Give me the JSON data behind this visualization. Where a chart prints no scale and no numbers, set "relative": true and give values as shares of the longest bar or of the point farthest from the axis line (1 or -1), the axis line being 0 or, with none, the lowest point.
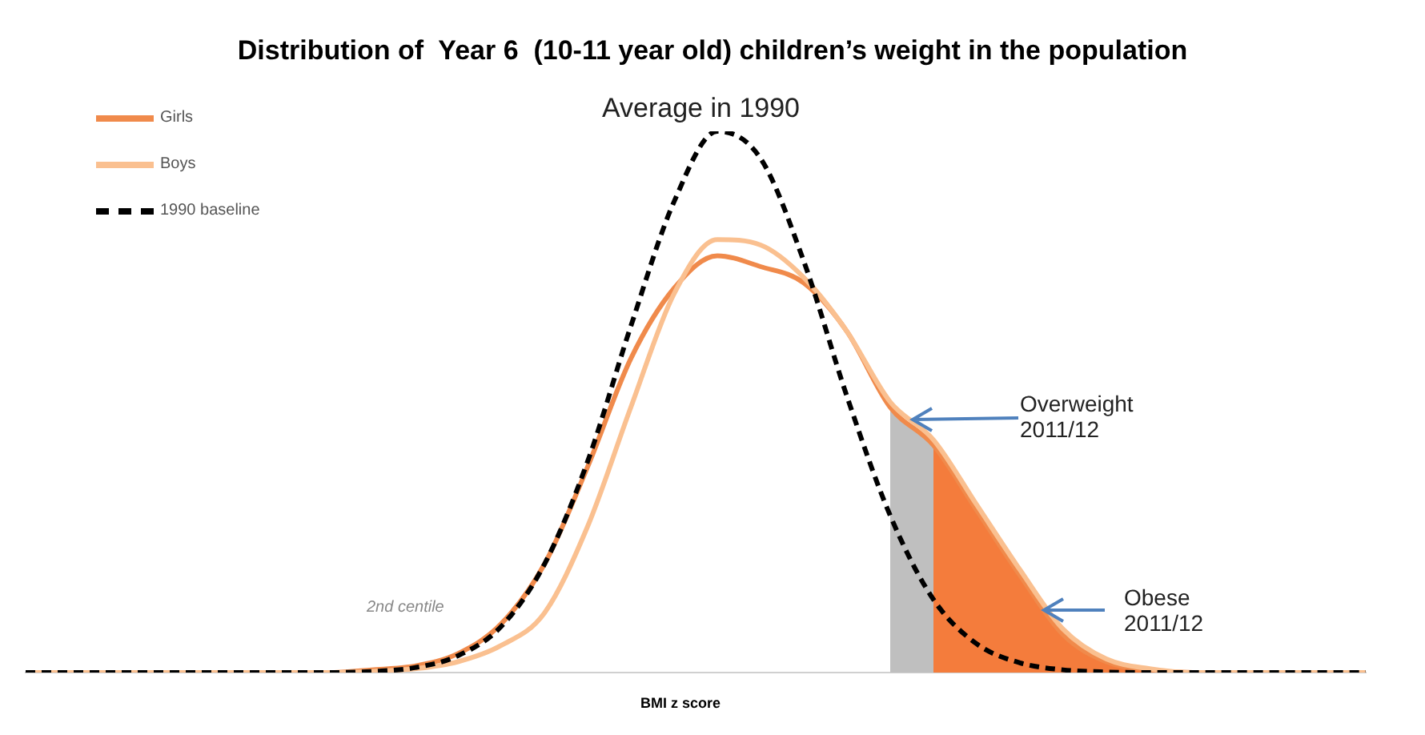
{
  "chart_data": {
    "type": "line",
    "relative": true,
    "title": "Distribution of  Year 6  (10-11 year old) children’s weight in the population",
    "xlabel": "BMI z score",
    "legend": "top left",
    "marker": "none",
    "categories": [
      null,
      null,
      null,
      null,
      null,
      null,
      null,
      null,
      null,
      null,
      null,
      null,
      null,
      null,
      null,
      null,
      null,
      null,
      null,
      null,
      null,
      null,
      null,
      null,
      null,
      null,
      null,
      null,
      null,
      null,
      null,
      null
    ],
    "series": [
      {
        "type": "area",
        "color": "#bfbfbf",
        "values": [
          null,
          null,
          null,
          null,
          null,
          null,
          null,
          null,
          null,
          null,
          null,
          null,
          null,
          null,
          null,
          null,
          null,
          null,
          null,
          null,
          0.49,
          0.42,
          null,
          null,
          null,
          null,
          null,
          null,
          null,
          null,
          null,
          null
        ]
      },
      {
        "type": "area",
        "color": "#f47c3c",
        "values": [
          null,
          null,
          null,
          null,
          null,
          null,
          null,
          null,
          null,
          null,
          null,
          null,
          null,
          null,
          null,
          null,
          null,
          null,
          null,
          null,
          null,
          0.42,
          0.3,
          0.18,
          0.07,
          0.02,
          0.005,
          null,
          null,
          null,
          null,
          null
        ]
      },
      {
        "name": "Girls",
        "type": "line",
        "line_style": "solid",
        "color": "#f08a4b",
        "values": [
          0,
          0,
          0,
          0,
          0,
          0,
          0,
          0,
          0.005,
          0.012,
          0.035,
          0.09,
          0.2,
          0.38,
          0.58,
          0.71,
          0.77,
          0.75,
          0.72,
          0.63,
          0.49,
          0.42,
          0.3,
          0.18,
          0.07,
          0.02,
          0.005,
          0,
          0,
          0,
          0,
          0
        ]
      },
      {
        "name": "Boys",
        "type": "line",
        "line_style": "solid",
        "color": "#fac090",
        "values": [
          0,
          0,
          0,
          0,
          0,
          0,
          0,
          0,
          0.002,
          0.007,
          0.02,
          0.05,
          0.11,
          0.27,
          0.49,
          0.7,
          0.8,
          0.79,
          0.73,
          0.63,
          0.5,
          0.43,
          0.31,
          0.19,
          0.08,
          0.025,
          0.007,
          0,
          0,
          0,
          0,
          0
        ]
      },
      {
        "name": "1990 baseline",
        "type": "line",
        "line_style": "dashed",
        "color": "#000000",
        "values": [
          0,
          0,
          0,
          0,
          0,
          0,
          0,
          0,
          0.002,
          0.009,
          0.031,
          0.085,
          0.2,
          0.39,
          0.64,
          0.87,
          1,
          0.95,
          0.76,
          0.51,
          0.29,
          0.135,
          0.053,
          0.018,
          0.005,
          0.001,
          0,
          0,
          0,
          0,
          0,
          0
        ]
      }
    ],
    "annotations": [
      "Average in 1990",
      "2nd centile",
      "Overweight 2011/12",
      "Obese 2011/12"
    ]
  }
}
